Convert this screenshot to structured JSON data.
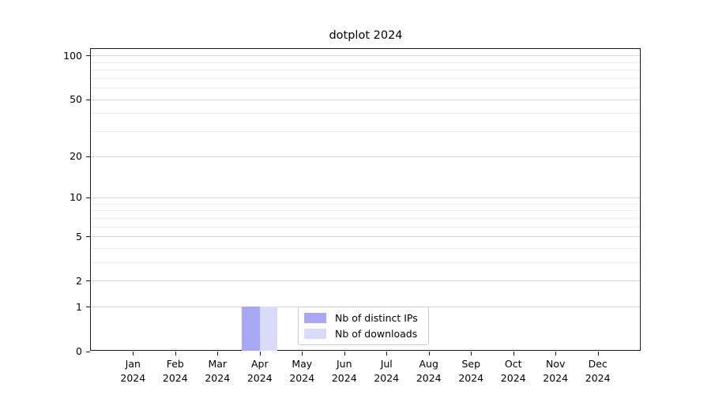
{
  "title": "dotplot 2024",
  "chart_data": {
    "type": "bar",
    "title": "dotplot 2024",
    "xlabel": "",
    "ylabel": "",
    "x_axis": {
      "months": [
        "Jan",
        "Feb",
        "Mar",
        "Apr",
        "May",
        "Jun",
        "Jul",
        "Aug",
        "Sep",
        "Oct",
        "Nov",
        "Dec"
      ],
      "year": "2024"
    },
    "y_axis": {
      "scale": "log10(1+x)",
      "ticks": [
        0,
        1,
        2,
        5,
        10,
        20,
        50,
        100
      ],
      "tick_labels": [
        "0",
        "1",
        "2",
        "5",
        "10",
        "20",
        "50",
        "100"
      ],
      "minor_gridlines": [
        3,
        4,
        6,
        7,
        8,
        9,
        30,
        40,
        60,
        70,
        80,
        90
      ],
      "ymax": 110,
      "grid": true
    },
    "series": [
      {
        "name": "Nb of distinct IPs",
        "color": "#a8a8f4",
        "values": [
          0,
          0,
          0,
          1,
          0,
          0,
          0,
          0,
          0,
          0,
          0,
          0
        ]
      },
      {
        "name": "Nb of downloads",
        "color": "#dadaf9",
        "values": [
          0,
          0,
          0,
          1,
          0,
          0,
          0,
          0,
          0,
          0,
          0,
          0
        ]
      }
    ],
    "legend": {
      "position": "lower center",
      "entries": [
        "Nb of distinct IPs",
        "Nb of downloads"
      ]
    }
  }
}
